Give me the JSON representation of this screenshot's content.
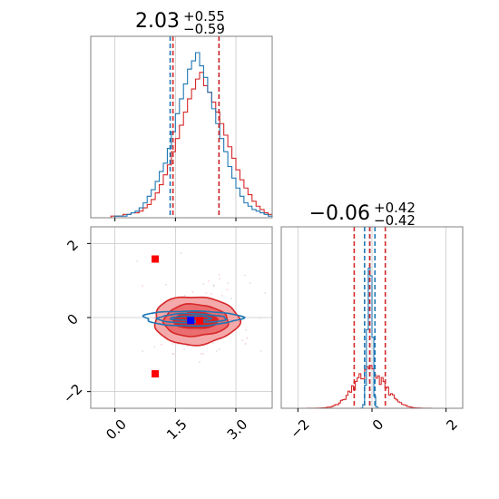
{
  "chart_data": [
    {
      "type": "histogram",
      "panel": "top-left",
      "title": {
        "value": "2.03",
        "plus": "+0.55",
        "minus": "−0.59"
      },
      "xlim": [
        -0.6,
        3.9
      ],
      "bins": {
        "start": -0.6,
        "width": 0.1
      },
      "series": [
        {
          "color": "#1f77b4",
          "counts": [
            0,
            0,
            0,
            0,
            0,
            0,
            1,
            1,
            1,
            2,
            3,
            4,
            6,
            9,
            13,
            17,
            22,
            28,
            33,
            42,
            52,
            63,
            72,
            81,
            90,
            95,
            100,
            92,
            85,
            76,
            66,
            57,
            48,
            40,
            31,
            24,
            18,
            13,
            9,
            7,
            5,
            4,
            3,
            2,
            1,
            1
          ],
          "quantiles": [
            1.37,
            2.03,
            2.58
          ]
        },
        {
          "color": "#d62728",
          "counts": [
            0,
            0,
            0,
            0,
            0,
            1,
            1,
            1,
            2,
            2,
            3,
            3,
            4,
            6,
            8,
            11,
            15,
            20,
            26,
            32,
            40,
            48,
            56,
            64,
            72,
            78,
            84,
            88,
            80,
            76,
            70,
            64,
            57,
            50,
            43,
            36,
            29,
            23,
            18,
            14,
            10,
            7,
            5,
            3,
            2,
            1
          ],
          "quantiles": [
            1.44,
            2.03,
            2.58
          ]
        }
      ],
      "xticks": [
        0.0,
        1.5,
        3.0
      ],
      "grid": true
    },
    {
      "type": "contour",
      "panel": "bottom-left",
      "xlim": [
        -0.6,
        3.9
      ],
      "ylim": [
        -2.45,
        2.45
      ],
      "xticks": [
        0.0,
        1.5,
        3.0
      ],
      "xtick_labels": [
        "0.0",
        "1.5",
        "3.0"
      ],
      "yticks": [
        -2,
        0,
        2
      ],
      "ytick_labels": [
        "−2",
        "0",
        "2"
      ],
      "red_contours": {
        "color": "#d62728",
        "center": [
          2.0,
          -0.08
        ],
        "levels": [
          [
            1.05,
            0.65
          ],
          [
            0.8,
            0.43
          ],
          [
            0.55,
            0.22
          ]
        ],
        "fills": [
          "#f4a9aa",
          "#ea6d6f",
          "#d62728"
        ]
      },
      "blue_contours": {
        "color": "#1f77b4",
        "center": [
          1.9,
          -0.02
        ],
        "levels": [
          [
            1.2,
            0.2
          ],
          [
            0.85,
            0.12
          ],
          [
            0.5,
            0.06
          ]
        ]
      },
      "markers": {
        "red_squares": [
          [
            1.0,
            1.58
          ],
          [
            1.0,
            -1.52
          ],
          [
            2.1,
            -0.08
          ]
        ],
        "blue_squares": [
          [
            1.88,
            -0.08
          ]
        ]
      },
      "grid": true
    },
    {
      "type": "histogram",
      "panel": "bottom-right",
      "title": {
        "value": "−0.06",
        "plus": "+0.42",
        "minus": "−0.42"
      },
      "xlim": [
        -2.45,
        2.45
      ],
      "xticks": [
        -2,
        0,
        2
      ],
      "xtick_labels": [
        "−2",
        "0",
        "2"
      ],
      "series": [
        {
          "color": "#1f77b4",
          "center": -0.06,
          "sigma": 0.06,
          "peak": 100,
          "quantiles": [
            -0.2,
            -0.06,
            0.08
          ]
        },
        {
          "color": "#d62728",
          "center": -0.06,
          "sigma": 0.42,
          "peak": 22,
          "quantiles": [
            -0.48,
            -0.06,
            0.36
          ]
        }
      ],
      "grid": true
    }
  ]
}
